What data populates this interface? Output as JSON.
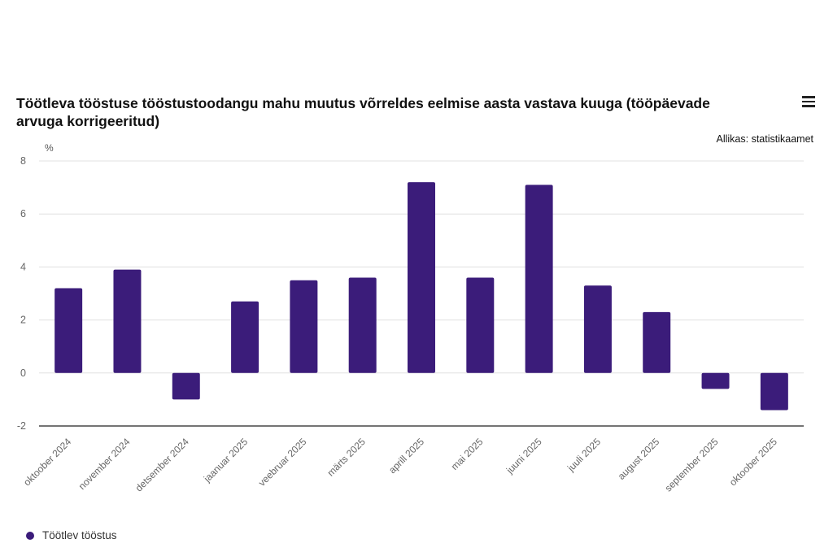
{
  "header": {
    "title": "Töötleva tööstuse tööstustoodangu mahu muutus võrreldes eelmise aasta vastava kuuga (tööpäevade arvuga korrigeeritud)",
    "source": "Allikas: statistikaamet",
    "menu_icon": "hamburger-menu-icon"
  },
  "colors": {
    "bar": "#3b1c7a",
    "grid": "#e0e0e0",
    "axis": "#222222"
  },
  "chart_data": {
    "type": "bar",
    "title": "Töötleva tööstuse tööstustoodangu mahu muutus võrreldes eelmise aasta vastava kuuga (tööpäevade arvuga korrigeeritud)",
    "xlabel": "",
    "ylabel": "%",
    "ylim": [
      -2,
      8
    ],
    "yticks": [
      -2,
      0,
      2,
      4,
      6,
      8
    ],
    "grid": true,
    "legend_position": "bottom-left",
    "categories": [
      "oktoober 2024",
      "november 2024",
      "detsember 2024",
      "jaanuar 2025",
      "veebruar 2025",
      "märts 2025",
      "aprill 2025",
      "mai 2025",
      "juuni 2025",
      "juuli 2025",
      "august 2025",
      "september 2025",
      "oktoober 2025"
    ],
    "series": [
      {
        "name": "Töötlev tööstus",
        "values": [
          3.2,
          3.9,
          -1.0,
          2.7,
          3.5,
          3.6,
          7.2,
          3.6,
          7.1,
          3.3,
          2.3,
          -0.6,
          -1.4
        ]
      }
    ]
  }
}
